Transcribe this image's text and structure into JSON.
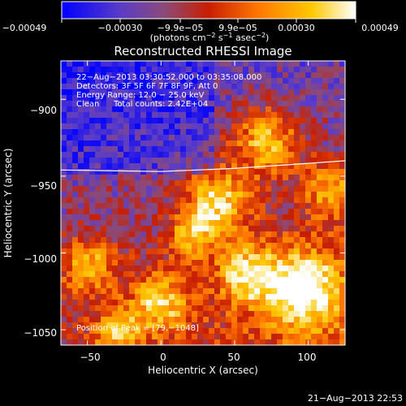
{
  "chart_data": {
    "type": "heatmap",
    "title": "Reconstructed RHESSI Image",
    "xlabel": "Heliocentric X (arcsec)",
    "ylabel": "Heliocentric Y (arcsec)",
    "xlim": [
      -68,
      125
    ],
    "ylim": [
      -1060,
      -875
    ],
    "x_ticks": [
      -50,
      0,
      50,
      100
    ],
    "x_tick_labels": [
      "−50",
      "0",
      "50",
      "100"
    ],
    "y_ticks": [
      -900,
      -950,
      -1000,
      -1050
    ],
    "y_tick_labels": [
      "−900",
      "−950",
      "−1000",
      "−1050"
    ],
    "colorbar": {
      "min": -0.00049,
      "max": 0.00049,
      "tick_labels": [
        "−0.00049",
        "−0.00030",
        "−9.9e−05",
        "9.9e−05",
        "0.00030",
        "0.00049"
      ],
      "unit_parts": [
        "(photons cm",
        "−2",
        " s",
        "−1",
        " asec",
        "−2",
        ")"
      ],
      "colormap": [
        "#0000ff",
        "#5a3cc8",
        "#8c4a78",
        "#c81e00",
        "#ff7800",
        "#ffc800",
        "#ffffff"
      ]
    },
    "annotations": [
      "22−Aug−2013 03:30:52.000 to 03:35:08.000",
      "Detectors: 3F 5F 6F 7F 8F 9F, Att 0",
      "Energy Range: 12.0 − 25.0 keV",
      "Clean",
      "Total counts: 2.42E+04"
    ],
    "peak_label": "Position of Peak = [79,−1048]",
    "limb_curve": {
      "x": [
        -68,
        0,
        50,
        125
      ],
      "y": [
        -946,
        -947,
        -945,
        -940
      ]
    },
    "footer": "21−Aug−2013 22:53"
  }
}
